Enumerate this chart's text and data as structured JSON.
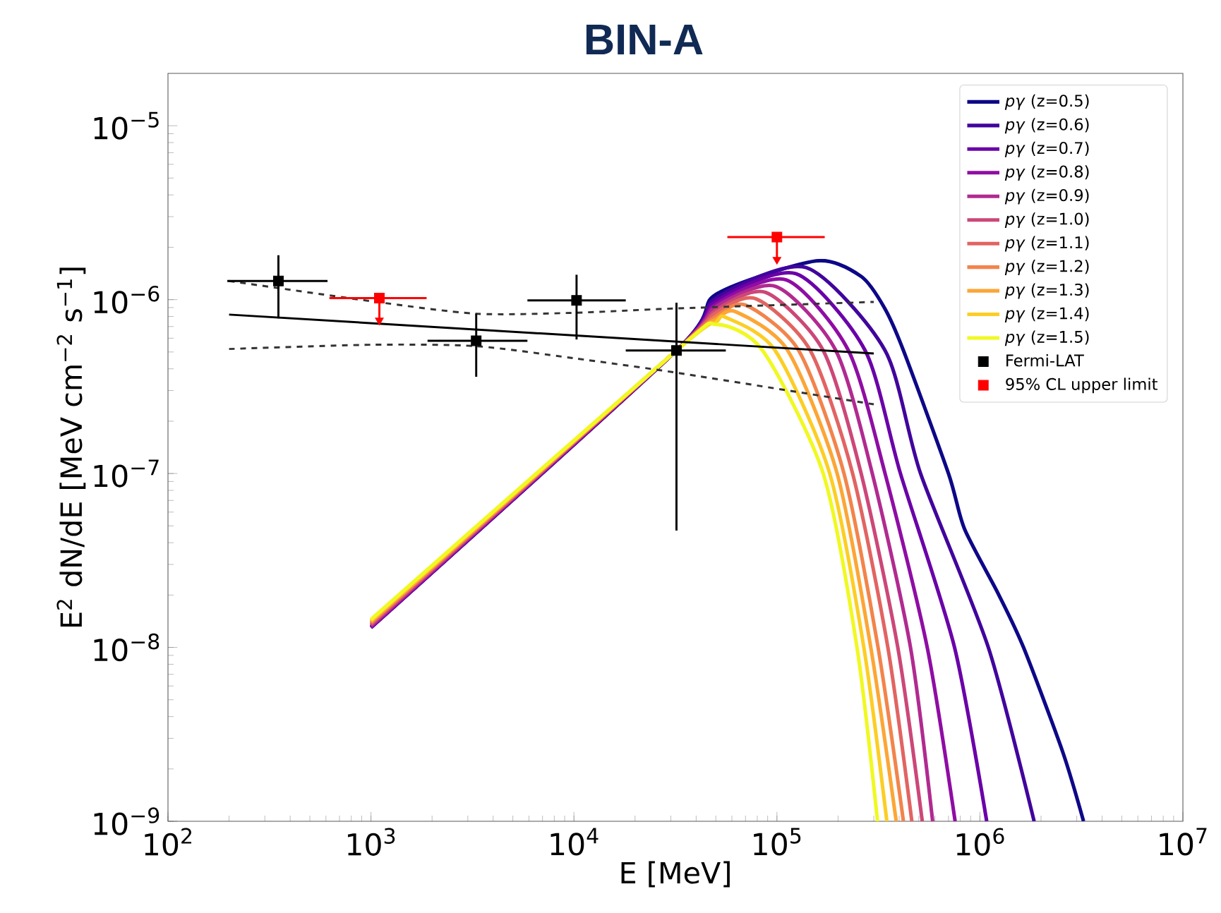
{
  "chart_data": {
    "type": "line",
    "title": "BIN-A",
    "xlabel": "E [MeV]",
    "ylabel": "E$^{2}$ dN/dE [MeV cm$^{−2}$ s$^{−1}$]",
    "log": "xy",
    "xlim": [
      100,
      10000000
    ],
    "ylim": [
      1e-09,
      2e-05
    ],
    "xticks": [
      {
        "value": 100,
        "label": "10$^{2}$"
      },
      {
        "value": 1000,
        "label": "10$^{3}$"
      },
      {
        "value": 10000,
        "label": "10$^{4}$"
      },
      {
        "value": 100000,
        "label": "10$^{5}$"
      },
      {
        "value": 1000000,
        "label": "10$^{6}$"
      },
      {
        "value": 10000000,
        "label": "10$^{7}$"
      }
    ],
    "yticks": [
      {
        "value": 1e-09,
        "label": "10$^{−9}$"
      },
      {
        "value": 1e-08,
        "label": "10$^{−8}$"
      },
      {
        "value": 1e-07,
        "label": "10$^{−7}$"
      },
      {
        "value": 1e-06,
        "label": "10$^{−6}$"
      },
      {
        "value": 1e-05,
        "label": "10$^{−5}$"
      }
    ],
    "legend": "top right",
    "marker": "none",
    "series": [
      {
        "name": "*pγ* (z=0.5)",
        "color": "#0d0887",
        "x": [
          1000,
          32000,
          50000,
          156000,
          260000,
          340000,
          420000,
          700000,
          840000,
          1230000,
          1640000,
          2560000,
          3240000
        ],
        "values": [
          1.3e-08,
          5.1e-07,
          1.07e-06,
          1.67e-06,
          1.36e-06,
          8.9e-07,
          5.1e-07,
          1e-07,
          4.8e-08,
          2.04e-08,
          1e-08,
          2.5e-09,
          1e-09
        ]
      },
      {
        "name": "*pγ* (z=0.6)",
        "color": "#41049d",
        "x": [
          1000,
          32000,
          50000,
          139000,
          341000,
          510000,
          1100000,
          1850000
        ],
        "values": [
          1.3e-08,
          5.1e-07,
          1.02e-06,
          1.53e-06,
          5.1e-07,
          1e-07,
          1e-08,
          1e-09
        ]
      },
      {
        "name": "*pγ* (z=0.7)",
        "color": "#6a00a8",
        "x": [
          1000,
          32000,
          50000,
          124000,
          272000,
          406000,
          750000,
          1080000
        ],
        "values": [
          1.3e-08,
          5.1e-07,
          9.8e-07,
          1.41e-06,
          5.1e-07,
          1e-07,
          1e-08,
          1e-09
        ]
      },
      {
        "name": "*pγ* (z=0.8)",
        "color": "#8f0da4",
        "x": [
          1000,
          32000,
          50000,
          111000,
          225000,
          341000,
          550000,
          755000
        ],
        "values": [
          1.31e-08,
          5.1e-07,
          9.4e-07,
          1.3e-06,
          5.1e-07,
          1e-07,
          1e-08,
          1e-09
        ]
      },
      {
        "name": "*pγ* (z=0.9)",
        "color": "#b12a90",
        "x": [
          1000,
          32000,
          50000,
          99000,
          195000,
          295000,
          455000,
          585000
        ],
        "values": [
          1.33e-08,
          5.1e-07,
          9.1e-07,
          1.19e-06,
          5.1e-07,
          1e-07,
          1e-08,
          1e-09
        ]
      },
      {
        "name": "*pγ* (z=1.0)",
        "color": "#cc4778",
        "x": [
          1000,
          32000,
          50000,
          88000,
          169000,
          260000,
          394000,
          520000
        ],
        "values": [
          1.35e-08,
          5.1e-07,
          8.7e-07,
          1.1e-06,
          5.1e-07,
          1e-07,
          1e-08,
          1e-09
        ]
      },
      {
        "name": "*pγ* (z=1.1)",
        "color": "#e16462",
        "x": [
          1000,
          32000,
          50000,
          79000,
          146000,
          236000,
          352000,
          462000
        ],
        "values": [
          1.37e-08,
          5.1e-07,
          8.4e-07,
          1.01e-06,
          5.1e-07,
          1e-07,
          1e-08,
          1e-09
        ]
      },
      {
        "name": "*pγ* (z=1.2)",
        "color": "#f2844b",
        "x": [
          1000,
          32000,
          50000,
          70000,
          128000,
          214000,
          315000,
          420000
        ],
        "values": [
          1.39e-08,
          5.1e-07,
          8e-07,
          9.3e-07,
          5.1e-07,
          1e-07,
          1e-08,
          1e-09
        ]
      },
      {
        "name": "*pγ* (z=1.3)",
        "color": "#fca636",
        "x": [
          1000,
          32000,
          50000,
          63000,
          113000,
          198000,
          290000,
          387000
        ],
        "values": [
          1.41e-08,
          5.1e-07,
          7.7e-07,
          8.5e-07,
          5.1e-07,
          1e-07,
          1e-08,
          1e-09
        ]
      },
      {
        "name": "*pγ* (z=1.4)",
        "color": "#fcce25",
        "x": [
          1000,
          32000,
          50000,
          56000,
          98000,
          182000,
          268000,
          348000
        ],
        "values": [
          1.43e-08,
          5.1e-07,
          7.4e-07,
          7.9e-07,
          5.1e-07,
          1e-07,
          1e-08,
          1e-09
        ]
      },
      {
        "name": "*pγ* (z=1.5)",
        "color": "#f0f921",
        "x": [
          1000,
          32000,
          50000,
          85000,
          169000,
          248000,
          313000
        ],
        "values": [
          1.45e-08,
          5.1e-07,
          7.2e-07,
          5.1e-07,
          1e-07,
          1e-08,
          1e-09
        ]
      },
      {
        "color": "#000000",
        "line_style": "solid",
        "x": [
          200,
          300000
        ],
        "values": [
          8.2e-07,
          4.9e-07
        ]
      },
      {
        "color": "#333333",
        "line_style": "dashed",
        "x": [
          200,
          1000,
          3300,
          10000,
          32000,
          300000
        ],
        "values": [
          1.28e-06,
          9.8e-07,
          8.3e-07,
          8.4e-07,
          8.9e-07,
          9.7e-07
        ]
      },
      {
        "color": "#333333",
        "line_style": "dashed",
        "x": [
          200,
          1000,
          3300,
          10000,
          32000,
          300000
        ],
        "values": [
          5.2e-07,
          5.5e-07,
          5.4e-07,
          4.6e-07,
          3.8e-07,
          2.5e-07
        ]
      },
      {
        "name": "Fermi-LAT",
        "type": "scatter",
        "marker": "square",
        "color": "#000000",
        "x": [
          350,
          3300,
          10300,
          32000
        ],
        "values": [
          1.28e-06,
          5.8e-07,
          9.9e-07,
          5.1e-07
        ],
        "errors": [
          [
            7.8e-07,
            1.8e-06
          ],
          [
            3.6e-07,
            8.3e-07
          ],
          [
            5.9e-07,
            1.39e-06
          ],
          [
            4.7e-08,
            9.6e-07
          ]
        ],
        "xerrors": [
          [
            196,
            611
          ],
          [
            1900,
            5900
          ],
          [
            5900,
            18000
          ],
          [
            18000,
            56000
          ]
        ]
      },
      {
        "name": "95% CL upper limit",
        "type": "scatter",
        "marker": "square",
        "color": "#ff0000",
        "x": [
          1100,
          100000
        ],
        "values": [
          1.02e-06,
          2.29e-06
        ],
        "errors": [
          [
            7.6e-07,
            1.02e-06
          ],
          [
            1.7e-06,
            2.29e-06
          ]
        ],
        "xerrors": [
          [
            624,
            1880
          ],
          [
            57000,
            172000
          ]
        ]
      }
    ]
  }
}
